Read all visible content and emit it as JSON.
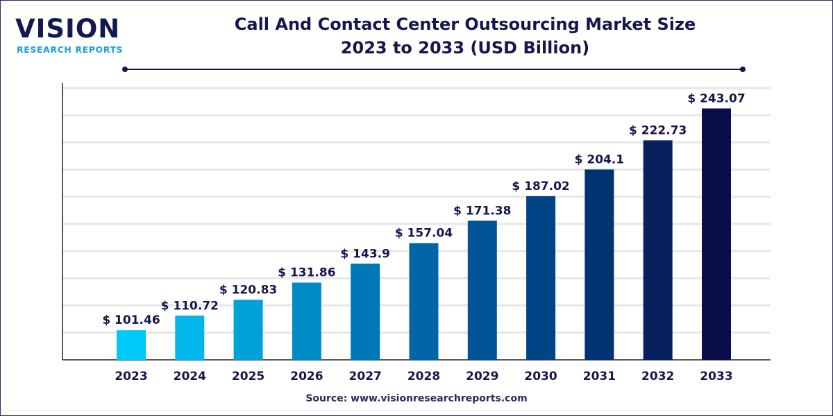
{
  "logo": {
    "main": "VISION",
    "sub": "RESEARCH REPORTS"
  },
  "header": {
    "title_line1": "Call And Contact Center Outsourcing Market Size",
    "title_line2": "2023 to 2033 (USD Billion)"
  },
  "source": "Source: www.visionresearchreports.com",
  "chart_data": {
    "type": "bar",
    "title": "Call And Contact Center Outsourcing Market Size 2023 to 2033 (USD Billion)",
    "categories": [
      "2023",
      "2024",
      "2025",
      "2026",
      "2027",
      "2028",
      "2029",
      "2030",
      "2031",
      "2032",
      "2033"
    ],
    "values": [
      101.46,
      110.72,
      120.83,
      131.86,
      143.9,
      157.04,
      171.38,
      187.02,
      204.1,
      222.73,
      243.07
    ],
    "labels": [
      "$ 101.46",
      "$ 110.72",
      "$ 120.83",
      "$ 131.86",
      "$ 143.9",
      "$ 157.04",
      "$ 171.38",
      "$ 187.02",
      "$ 204.1",
      "$ 222.73",
      "$ 243.07"
    ],
    "colors": [
      "#00c8f8",
      "#00b6ea",
      "#00a0d8",
      "#008bc6",
      "#0078b8",
      "#0066a8",
      "#005496",
      "#004486",
      "#003272",
      "#07215e",
      "#0a0e48"
    ],
    "xlabel": "",
    "ylabel": "",
    "ylim": [
      82.5,
      257
    ],
    "grid": true,
    "legend": "none"
  }
}
